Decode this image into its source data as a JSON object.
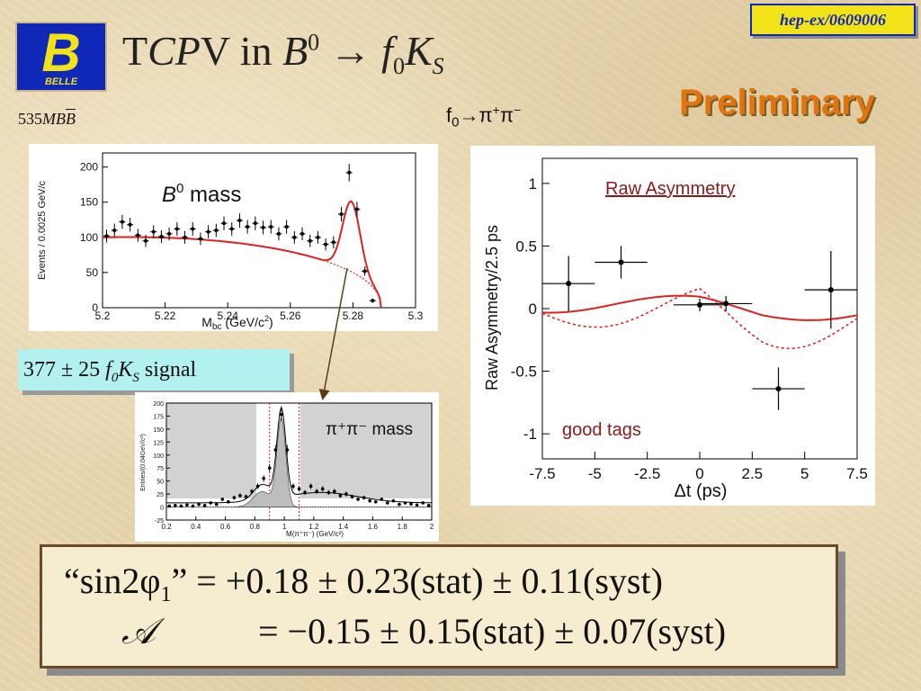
{
  "logo": {
    "letter": "B",
    "text": "BELLE"
  },
  "title": {
    "pre": "T",
    "cp": "CP",
    "v": "V in ",
    "b": "B",
    "sup0": "0",
    "arrow": " → ",
    "f": "f",
    "sub0": "0",
    "k": "K",
    "subs": "S"
  },
  "reference": "hep-ex/0609006",
  "preliminary": "Preliminary",
  "luminosity": {
    "num": "535",
    "mb": "MB",
    "bbar": "B"
  },
  "decay_mode": {
    "f": "f",
    "sub": "0",
    "arrow": "→",
    "pi1": "π",
    "sup1": "+",
    "pi2": "π",
    "sup2": "−"
  },
  "signal_box": {
    "count": "377 ± 25 ",
    "f": "f",
    "sub0": "0",
    "k": "K",
    "subs": "S",
    "label": " signal"
  },
  "mass_plot": {
    "label_b": "B",
    "label_sup": "0",
    "label_rest": " mass",
    "ylabel": "Events / 0.0025 GeV/c",
    "xlabel": "M",
    "xlabel_sub": "bc",
    "xlabel_unit": " (GeV/c",
    "xlabel_end": ")"
  },
  "pipi_plot": {
    "label": "π⁺π⁻ mass",
    "ylabel": "Entries/(0.04GeV/c²)",
    "xlabel": "M(π⁺π⁻) (GeV/c²)"
  },
  "asym_plot": {
    "title": "Raw Asymmetry",
    "ylabel": "Raw Asymmetry/2.5 ps",
    "xlabel": "Δt (ps)",
    "note": "good tags"
  },
  "results": {
    "line1_label": "“sin2φ",
    "line1_sub": "1",
    "line1_close": "”",
    "line1_value": " = +0.18 ± 0.23(stat) ± 0.11(syst)",
    "line2_label": "𝒜",
    "line2_value": "= −0.15 ± 0.15(stat) ± 0.07(syst)"
  },
  "chart_data": [
    {
      "type": "scatter",
      "title": "B0 mass",
      "xlabel": "Mbc (GeV/c²)",
      "ylabel": "Events / 0.0025 GeV/c²",
      "xlim": [
        5.2,
        5.3
      ],
      "ylim": [
        0,
        220
      ],
      "xticks": [
        "5.2",
        "5.22",
        "5.24",
        "5.26",
        "5.28",
        "5.3"
      ],
      "yticks": [
        "0",
        "50",
        "100",
        "150",
        "200"
      ],
      "x": [
        5.2013,
        5.2038,
        5.2063,
        5.2088,
        5.2113,
        5.2138,
        5.2163,
        5.2188,
        5.2213,
        5.2238,
        5.2263,
        5.2288,
        5.2313,
        5.2338,
        5.2363,
        5.2388,
        5.2413,
        5.2438,
        5.2463,
        5.2488,
        5.2513,
        5.2538,
        5.2563,
        5.2588,
        5.2613,
        5.2638,
        5.2663,
        5.2688,
        5.2713,
        5.2738,
        5.2763,
        5.2788,
        5.2813,
        5.2838,
        5.2863
      ],
      "y": [
        102,
        110,
        122,
        118,
        103,
        95,
        108,
        101,
        105,
        112,
        100,
        112,
        98,
        108,
        110,
        120,
        112,
        124,
        115,
        120,
        114,
        115,
        105,
        115,
        100,
        105,
        95,
        100,
        90,
        93,
        133,
        192,
        140,
        52,
        10
      ]
    },
    {
      "type": "line",
      "title": "Raw Asymmetry",
      "xlabel": "Δt (ps)",
      "ylabel": "Raw Asymmetry/2.5 ps",
      "xlim": [
        -7.5,
        7.5
      ],
      "ylim": [
        -1.2,
        1.2
      ],
      "xticks": [
        "-7.5",
        "-5",
        "-2.5",
        "0",
        "2.5",
        "5",
        "7.5"
      ],
      "yticks": [
        "1",
        "0.5",
        "0",
        "-0.5",
        "-1"
      ],
      "points": {
        "x": [
          -6.25,
          -3.75,
          0,
          1.25,
          3.75,
          6.25
        ],
        "y": [
          0.2,
          0.37,
          0.03,
          0.04,
          -0.64,
          0.15
        ]
      }
    },
    {
      "type": "scatter",
      "title": "π⁺π⁻ mass",
      "xlabel": "M(π⁺π⁻) (GeV/c²)",
      "ylabel": "Entries/(0.04GeV/c²)",
      "xlim": [
        0.2,
        2
      ],
      "ylim": [
        -25,
        200
      ],
      "xticks": [
        "0.2",
        "0.4",
        "0.6",
        "0.8",
        "1",
        "1.2",
        "1.4",
        "1.6",
        "1.8",
        "2"
      ],
      "yticks": [
        "-25",
        "0",
        "25",
        "50",
        "75",
        "100",
        "125",
        "150",
        "175",
        "200"
      ]
    }
  ]
}
